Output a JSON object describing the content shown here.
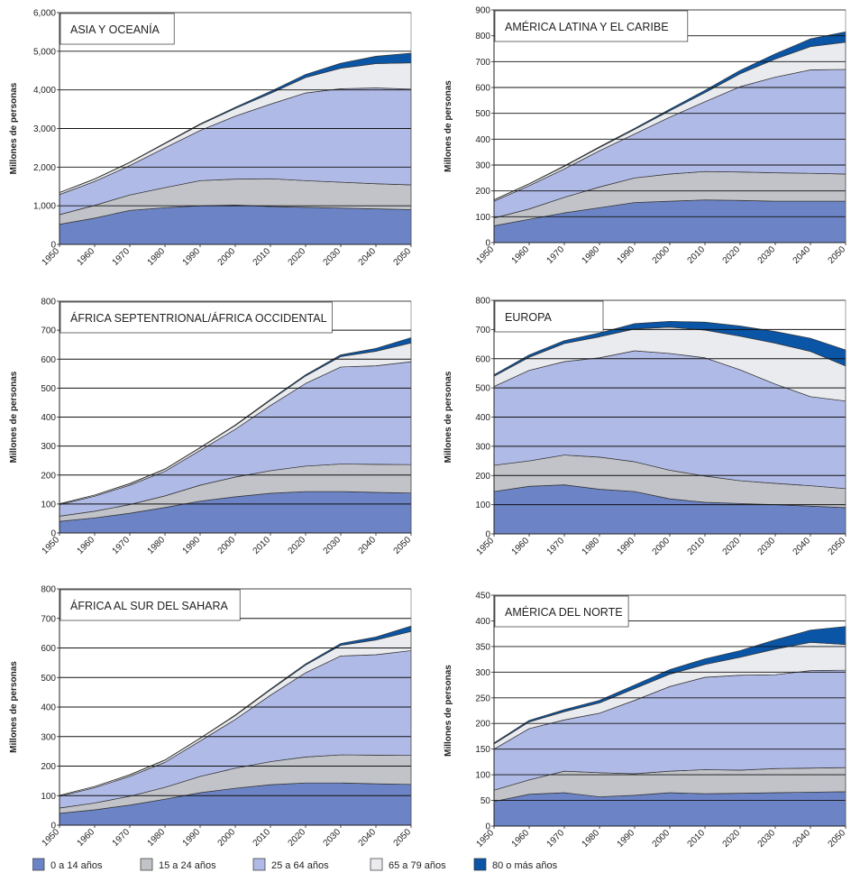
{
  "colors": {
    "0a14": "#6c84c6",
    "15a24": "#c1c3c8",
    "25a64": "#b0bae6",
    "65a79": "#eaebee",
    "80mas": "#0a55a6",
    "stroke": "#333333"
  },
  "legend": [
    {
      "label": "0 a 14 años",
      "color_key": "0a14"
    },
    {
      "label": "15 a 24 años",
      "color_key": "15a24"
    },
    {
      "label": "25 a 64 años",
      "color_key": "25a64"
    },
    {
      "label": "65 a 79 años",
      "color_key": "65a79"
    },
    {
      "label": "80 o más años",
      "color_key": "80mas"
    }
  ],
  "chart_data": [
    {
      "type": "area",
      "stacked": true,
      "title": "ASIA Y OCEANÍA",
      "ylabel": "Millones de personas",
      "ylim": [
        0,
        6000
      ],
      "yticks": [
        0,
        1000,
        2000,
        3000,
        4000,
        5000,
        6000
      ],
      "ytick_labels": [
        "0",
        "1,000",
        "2,000",
        "3,000",
        "4,000",
        "5,000",
        "6,000"
      ],
      "x": [
        1950,
        1960,
        1970,
        1980,
        1990,
        2000,
        2010,
        2020,
        2030,
        2040,
        2050
      ],
      "series": [
        {
          "name": "0 a 14 años",
          "values": [
            520,
            680,
            880,
            950,
            1000,
            1020,
            980,
            960,
            940,
            920,
            900
          ]
        },
        {
          "name": "15 a 24 años",
          "values": [
            250,
            330,
            400,
            520,
            650,
            670,
            720,
            690,
            670,
            650,
            640
          ]
        },
        {
          "name": "25 a 64 años",
          "values": [
            520,
            620,
            760,
            1030,
            1300,
            1630,
            1930,
            2270,
            2420,
            2480,
            2480
          ]
        },
        {
          "name": "65 a 79 años",
          "values": [
            50,
            60,
            80,
            110,
            150,
            200,
            280,
            400,
            530,
            630,
            680
          ]
        },
        {
          "name": "80 o más años",
          "values": [
            5,
            8,
            10,
            15,
            20,
            30,
            50,
            80,
            130,
            190,
            250
          ]
        }
      ]
    },
    {
      "type": "area",
      "stacked": true,
      "title": "AMÉRICA LATINA Y EL CARIBE",
      "ylabel": "Millones de personas",
      "ylim": [
        0,
        900
      ],
      "yticks": [
        0,
        100,
        200,
        300,
        400,
        500,
        600,
        700,
        800,
        900
      ],
      "ytick_labels": [
        "0",
        "100",
        "200",
        "300",
        "400",
        "500",
        "600",
        "700",
        "800",
        "900"
      ],
      "x": [
        1950,
        1960,
        1970,
        1980,
        1990,
        2000,
        2010,
        2020,
        2030,
        2040,
        2050
      ],
      "series": [
        {
          "name": "0 a 14 años",
          "values": [
            65,
            90,
            115,
            135,
            155,
            160,
            165,
            163,
            160,
            160,
            160
          ]
        },
        {
          "name": "15 a 24 años",
          "values": [
            30,
            40,
            60,
            80,
            95,
            105,
            110,
            110,
            110,
            108,
            105
          ]
        },
        {
          "name": "25 a 64 años",
          "values": [
            65,
            90,
            110,
            140,
            170,
            220,
            270,
            330,
            370,
            400,
            405
          ]
        },
        {
          "name": "65 a 79 años",
          "values": [
            5,
            7,
            10,
            13,
            18,
            25,
            35,
            50,
            70,
            90,
            105
          ]
        },
        {
          "name": "80 o más años",
          "values": [
            1,
            1,
            2,
            3,
            4,
            6,
            9,
            13,
            20,
            30,
            40
          ]
        }
      ]
    },
    {
      "type": "area",
      "stacked": true,
      "title": "ÁFRICA SEPTENTRIONAL/ÁFRICA OCCIDENTAL",
      "ylabel": "Millones de personas",
      "ylim": [
        0,
        800
      ],
      "yticks": [
        0,
        100,
        200,
        300,
        400,
        500,
        600,
        700,
        800
      ],
      "ytick_labels": [
        "0",
        "100",
        "200",
        "300",
        "400",
        "500",
        "600",
        "700",
        "800"
      ],
      "x": [
        1950,
        1960,
        1970,
        1980,
        1990,
        2000,
        2010,
        2020,
        2030,
        2040,
        2050
      ],
      "series": [
        {
          "name": "0 a 14 años",
          "values": [
            40,
            52,
            68,
            88,
            110,
            125,
            137,
            143,
            143,
            140,
            138
          ]
        },
        {
          "name": "15 a 24 años",
          "values": [
            18,
            23,
            30,
            40,
            55,
            68,
            78,
            88,
            95,
            97,
            98
          ]
        },
        {
          "name": "25 a 64 años",
          "values": [
            40,
            52,
            67,
            85,
            120,
            165,
            225,
            285,
            335,
            340,
            355
          ]
        },
        {
          "name": "65 a 79 años",
          "values": [
            3,
            4,
            5,
            7,
            9,
            13,
            18,
            26,
            36,
            50,
            65
          ]
        },
        {
          "name": "80 o más años",
          "values": [
            0,
            0,
            1,
            1,
            1,
            2,
            3,
            4,
            6,
            10,
            18
          ]
        }
      ]
    },
    {
      "type": "area",
      "stacked": true,
      "title": "EUROPA",
      "ylabel": "Millones de personas",
      "ylim": [
        0,
        800
      ],
      "yticks": [
        0,
        100,
        200,
        300,
        400,
        500,
        600,
        700,
        800
      ],
      "ytick_labels": [
        "0",
        "100",
        "200",
        "300",
        "400",
        "500",
        "600",
        "700",
        "800"
      ],
      "x": [
        1950,
        1960,
        1970,
        1980,
        1990,
        2000,
        2010,
        2020,
        2030,
        2040,
        2050
      ],
      "series": [
        {
          "name": "0 a 14 años",
          "values": [
            145,
            163,
            168,
            153,
            145,
            120,
            108,
            104,
            100,
            95,
            90
          ]
        },
        {
          "name": "15 a 24 años",
          "values": [
            90,
            87,
            102,
            110,
            102,
            98,
            90,
            78,
            73,
            70,
            65
          ]
        },
        {
          "name": "25 a 64 años",
          "values": [
            270,
            310,
            320,
            340,
            380,
            400,
            405,
            380,
            340,
            305,
            300
          ]
        },
        {
          "name": "65 a 79 años",
          "values": [
            35,
            45,
            62,
            72,
            75,
            90,
            95,
            115,
            140,
            155,
            120
          ]
        },
        {
          "name": "80 o más años",
          "values": [
            5,
            8,
            10,
            13,
            18,
            20,
            27,
            35,
            40,
            45,
            55
          ]
        }
      ]
    },
    {
      "type": "area",
      "stacked": true,
      "title": "ÁFRICA AL SUR DEL SAHARA",
      "ylabel": "Millones de personas",
      "ylim": [
        0,
        800
      ],
      "yticks": [
        0,
        100,
        200,
        300,
        400,
        500,
        600,
        700,
        800
      ],
      "ytick_labels": [
        "0",
        "100",
        "200",
        "300",
        "400",
        "500",
        "600",
        "700",
        "800"
      ],
      "x": [
        1950,
        1960,
        1970,
        1980,
        1990,
        2000,
        2010,
        2020,
        2030,
        2040,
        2050
      ],
      "series": [
        {
          "name": "0 a 14 años",
          "values": [
            40,
            52,
            68,
            88,
            110,
            125,
            137,
            143,
            143,
            140,
            138
          ]
        },
        {
          "name": "15 a 24 años",
          "values": [
            18,
            23,
            30,
            40,
            55,
            68,
            78,
            88,
            95,
            97,
            98
          ]
        },
        {
          "name": "25 a 64 años",
          "values": [
            40,
            52,
            67,
            85,
            120,
            165,
            225,
            285,
            335,
            340,
            355
          ]
        },
        {
          "name": "65 a 79 años",
          "values": [
            3,
            4,
            5,
            7,
            9,
            13,
            18,
            26,
            36,
            50,
            65
          ]
        },
        {
          "name": "80 o más años",
          "values": [
            0,
            0,
            1,
            1,
            1,
            2,
            3,
            4,
            6,
            10,
            18
          ]
        }
      ]
    },
    {
      "type": "area",
      "stacked": true,
      "title": "AMÉRICA DEL NORTE",
      "ylabel": "Millones de personas",
      "ylim": [
        0,
        450
      ],
      "yticks": [
        0,
        50,
        100,
        150,
        200,
        250,
        300,
        350,
        400,
        450
      ],
      "ytick_labels": [
        "0",
        "50",
        "100",
        "150",
        "200",
        "250",
        "300",
        "350",
        "400",
        "450"
      ],
      "x": [
        1950,
        1960,
        1970,
        1980,
        1990,
        2000,
        2010,
        2020,
        2030,
        2040,
        2050
      ],
      "series": [
        {
          "name": "0 a 14 años",
          "values": [
            48,
            62,
            65,
            57,
            60,
            65,
            63,
            64,
            65,
            66,
            67
          ]
        },
        {
          "name": "15 a 24 años",
          "values": [
            22,
            28,
            42,
            47,
            42,
            42,
            47,
            45,
            47,
            47,
            47
          ]
        },
        {
          "name": "25 a 64 años",
          "values": [
            80,
            100,
            100,
            116,
            143,
            165,
            180,
            185,
            183,
            190,
            190
          ]
        },
        {
          "name": "65 a 79 años",
          "values": [
            10,
            13,
            16,
            20,
            23,
            24,
            25,
            35,
            50,
            55,
            50
          ]
        },
        {
          "name": "80 o más años",
          "values": [
            2,
            3,
            4,
            5,
            7,
            9,
            11,
            13,
            18,
            24,
            35
          ]
        }
      ]
    }
  ]
}
